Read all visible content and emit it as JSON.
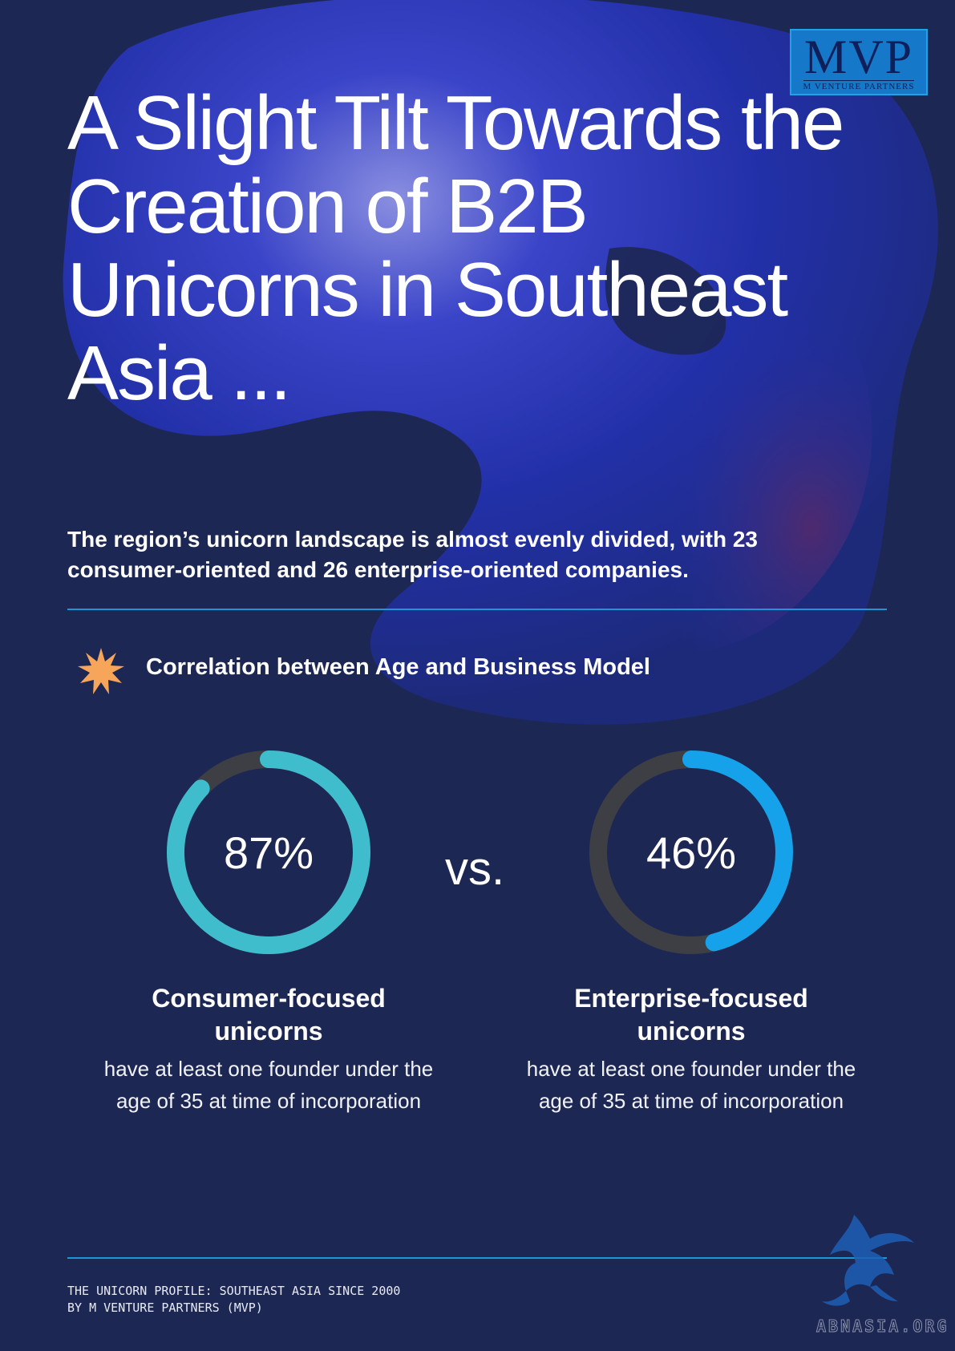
{
  "brand": {
    "logo_text": "MVP",
    "logo_subtext": "M VENTURE PARTNERS",
    "colors": {
      "background": "#1d2753",
      "accent": "#1e95d6",
      "consumer_ring": "#3fbdcc",
      "enterprise_ring": "#16a2ea",
      "ring_track": "#3d3f45",
      "burst_icon": "#f7a55b"
    }
  },
  "header": {
    "title": "A Slight Tilt Towards the Creation of B2B Unicorns in Southeast Asia ...",
    "subtitle": "The region’s unicorn landscape is almost evenly divided, with 23 consumer-oriented and 26 enterprise-oriented companies."
  },
  "section": {
    "icon": "burst-icon",
    "title": "Correlation between Age and Business Model"
  },
  "comparison": {
    "vs_label": "vs.",
    "consumer": {
      "percent_label": "87%",
      "fraction": 0.87,
      "heading": "Consumer-focused unicorns",
      "description": "have at least one founder under the age of 35 at time of incorporation"
    },
    "enterprise": {
      "percent_label": "46%",
      "fraction": 0.46,
      "heading": "Enterprise-focused unicorns",
      "description": "have at least one founder under the age of 35 at time of incorporation"
    }
  },
  "footer": {
    "line1": "THE UNICORN PROFILE: SOUTHEAST ASIA SINCE 2000",
    "line2": "BY M VENTURE PARTNERS (MVP)",
    "watermark": "ABNASIA.ORG"
  }
}
